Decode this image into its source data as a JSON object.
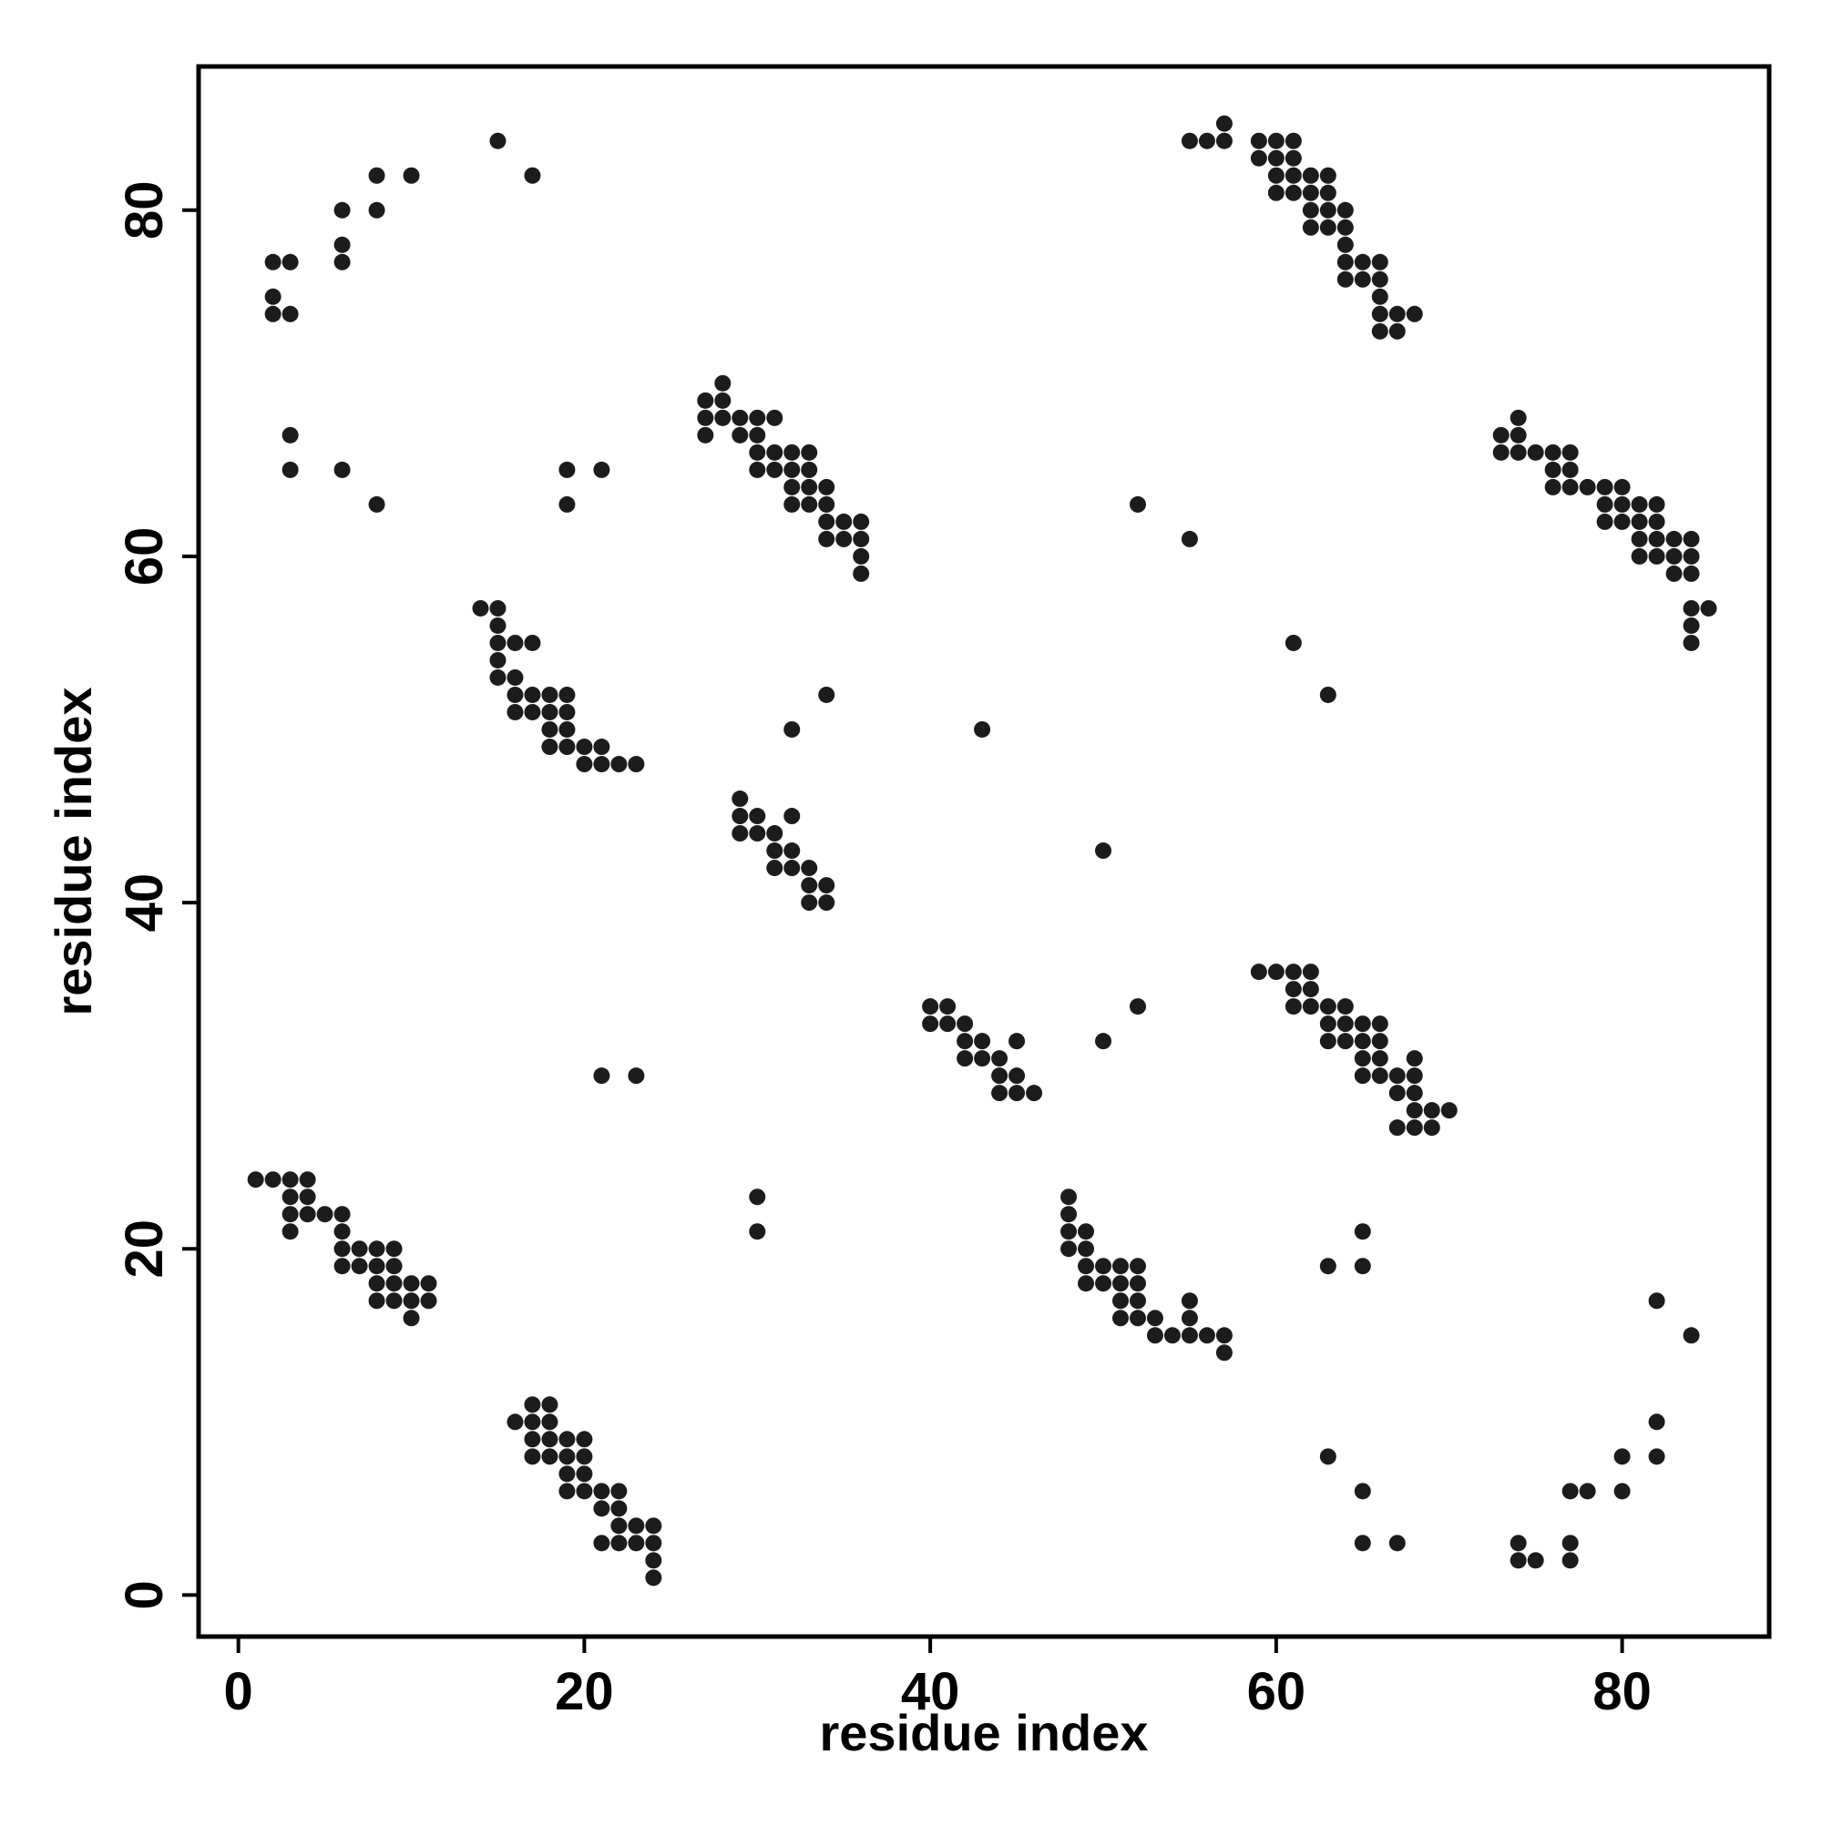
{
  "chart_data": {
    "type": "scatter",
    "x_label": "residue index",
    "y_label": "residue index",
    "xlim": [
      -2.3,
      88.5
    ],
    "ylim": [
      -2.4,
      88.3
    ],
    "xticks": [
      0,
      20,
      40,
      60,
      80
    ],
    "yticks": [
      0,
      20,
      40,
      60,
      80
    ],
    "series": [
      {
        "color": "#1c1c1c",
        "x": [
          1,
          2,
          3,
          4,
          3,
          4,
          3,
          4,
          5,
          6,
          3,
          6,
          6,
          7,
          8,
          9,
          6,
          7,
          8,
          9,
          8,
          9,
          10,
          11,
          8,
          9,
          10,
          11,
          10,
          17,
          18,
          16,
          17,
          18,
          17,
          18,
          19,
          20,
          17,
          18,
          19,
          20,
          19,
          20,
          19,
          20,
          21,
          22,
          21,
          22,
          22,
          23,
          24,
          21,
          22,
          23,
          24,
          24,
          24,
          14,
          15,
          15,
          15,
          16,
          17,
          15,
          15,
          16,
          16,
          17,
          18,
          19,
          16,
          17,
          18,
          19,
          18,
          19,
          18,
          19,
          20,
          21,
          20,
          21,
          22,
          23,
          28,
          27,
          28,
          27,
          28,
          29,
          30,
          31,
          27,
          29,
          30,
          30,
          31,
          32,
          33,
          30,
          31,
          32,
          33,
          32,
          33,
          34,
          32,
          33,
          34,
          34,
          35,
          36,
          34,
          35,
          36,
          36,
          36,
          29,
          29,
          30,
          32,
          29,
          30,
          31,
          31,
          32,
          31,
          32,
          33,
          33,
          34,
          33,
          34,
          40,
          41,
          40,
          41,
          42,
          42,
          43,
          45,
          42,
          43,
          44,
          44,
          45,
          44,
          45,
          46,
          48,
          48,
          48,
          49,
          48,
          49,
          49,
          50,
          51,
          52,
          49,
          50,
          51,
          52,
          51,
          52,
          55,
          51,
          52,
          53,
          55,
          53,
          54,
          55,
          56,
          57,
          57,
          59,
          60,
          61,
          62,
          61,
          62,
          61,
          62,
          63,
          64,
          63,
          64,
          65,
          66,
          63,
          64,
          65,
          66,
          65,
          66,
          68,
          65,
          66,
          67,
          68,
          67,
          68,
          68,
          69,
          70,
          67,
          68,
          69,
          57,
          55,
          56,
          57,
          59,
          60,
          61,
          59,
          60,
          61,
          60,
          61,
          62,
          63,
          60,
          61,
          62,
          63,
          62,
          63,
          64,
          62,
          63,
          64,
          64,
          64,
          65,
          66,
          64,
          65,
          66,
          66,
          66,
          67,
          68,
          66,
          67,
          74,
          73,
          74,
          73,
          74,
          75,
          76,
          77,
          76,
          77,
          76,
          77,
          78,
          79,
          80,
          79,
          80,
          81,
          82,
          79,
          80,
          81,
          82,
          81,
          82,
          83,
          84,
          81,
          82,
          83,
          84,
          83,
          84,
          84,
          85,
          84,
          84,
          2,
          3,
          2,
          2,
          3,
          6,
          6,
          6,
          8,
          8,
          10,
          15,
          17,
          3,
          3,
          6,
          8,
          19,
          21,
          19,
          52,
          55,
          61,
          63,
          34,
          32,
          43,
          50,
          50,
          52,
          21,
          23,
          30,
          30,
          63,
          65,
          65,
          82,
          84,
          63,
          65,
          65,
          67,
          74,
          74,
          75,
          77,
          77,
          77,
          78,
          80,
          80,
          82,
          82
        ],
        "values": [
          24,
          24,
          24,
          24,
          23,
          23,
          22,
          22,
          22,
          22,
          21,
          21,
          20,
          20,
          20,
          20,
          19,
          19,
          19,
          19,
          18,
          18,
          18,
          18,
          17,
          17,
          17,
          17,
          16,
          11,
          11,
          10,
          10,
          10,
          9,
          9,
          9,
          9,
          8,
          8,
          8,
          8,
          7,
          7,
          6,
          6,
          6,
          6,
          5,
          5,
          4,
          4,
          4,
          3,
          3,
          3,
          3,
          2,
          1,
          57,
          57,
          56,
          55,
          55,
          55,
          54,
          53,
          53,
          52,
          52,
          52,
          52,
          51,
          51,
          51,
          51,
          50,
          50,
          49,
          49,
          49,
          49,
          48,
          48,
          48,
          48,
          70,
          69,
          69,
          68,
          68,
          68,
          68,
          68,
          67,
          67,
          67,
          66,
          66,
          66,
          66,
          65,
          65,
          65,
          65,
          64,
          64,
          64,
          63,
          63,
          63,
          62,
          62,
          62,
          61,
          61,
          61,
          60,
          59,
          46,
          45,
          45,
          45,
          44,
          44,
          44,
          43,
          43,
          42,
          42,
          42,
          41,
          41,
          40,
          40,
          34,
          34,
          33,
          33,
          33,
          32,
          32,
          32,
          31,
          31,
          31,
          30,
          30,
          29,
          29,
          29,
          23,
          22,
          21,
          21,
          20,
          20,
          19,
          19,
          19,
          19,
          18,
          18,
          18,
          18,
          17,
          17,
          17,
          16,
          16,
          16,
          16,
          15,
          15,
          15,
          15,
          15,
          14,
          36,
          36,
          36,
          36,
          35,
          35,
          34,
          34,
          34,
          34,
          33,
          33,
          33,
          33,
          32,
          32,
          32,
          32,
          31,
          31,
          31,
          30,
          30,
          30,
          30,
          29,
          29,
          28,
          28,
          28,
          27,
          27,
          27,
          85,
          84,
          84,
          84,
          84,
          84,
          84,
          83,
          83,
          83,
          82,
          82,
          82,
          82,
          81,
          81,
          81,
          81,
          80,
          80,
          80,
          79,
          79,
          79,
          78,
          77,
          77,
          77,
          76,
          76,
          76,
          75,
          74,
          74,
          74,
          73,
          73,
          68,
          67,
          67,
          66,
          66,
          66,
          66,
          66,
          65,
          65,
          64,
          64,
          64,
          64,
          64,
          63,
          63,
          63,
          63,
          62,
          62,
          62,
          62,
          61,
          61,
          61,
          61,
          60,
          60,
          60,
          60,
          59,
          59,
          57,
          57,
          56,
          55,
          77,
          77,
          75,
          74,
          74,
          80,
          78,
          77,
          82,
          80,
          82,
          84,
          82,
          67,
          65,
          65,
          63,
          65,
          65,
          63,
          63,
          61,
          55,
          52,
          52,
          50,
          50,
          43,
          32,
          34,
          30,
          30,
          23,
          21,
          19,
          21,
          19,
          17,
          15,
          8,
          6,
          3,
          3,
          3,
          2,
          2,
          3,
          2,
          6,
          6,
          8,
          6,
          10,
          8
        ]
      }
    ]
  }
}
